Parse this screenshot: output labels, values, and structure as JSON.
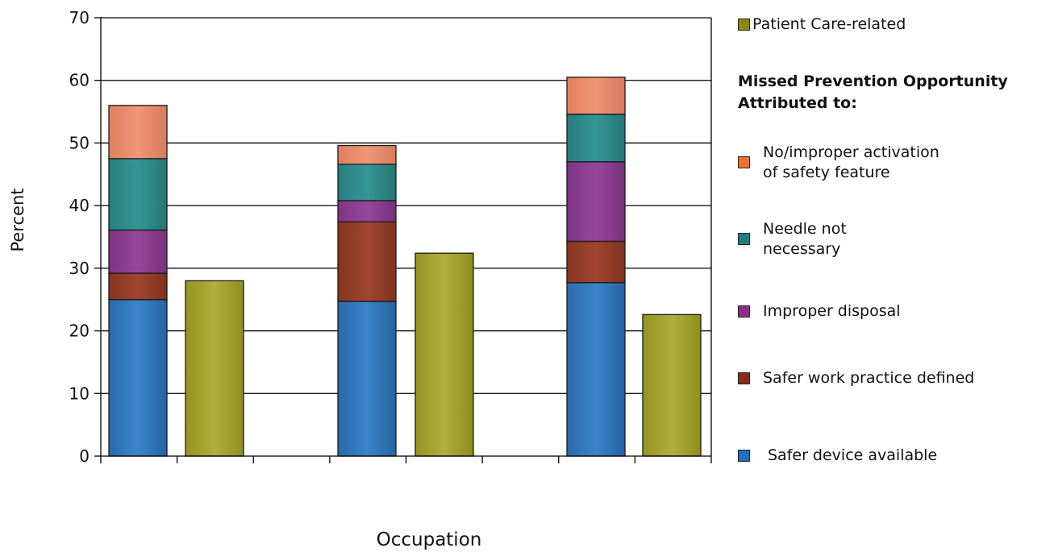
{
  "chart_data": {
    "type": "bar",
    "stacked": true,
    "title": "",
    "xlabel": "Occupation",
    "ylabel": "Percent",
    "ylim": [
      0,
      70
    ],
    "yticks": [
      0,
      10,
      20,
      30,
      40,
      50,
      60,
      70
    ],
    "categories": [
      "",
      "",
      ""
    ],
    "grid": true,
    "legend_position": "right",
    "legend_heading": "Missed Prevention Opportunity\nAttributed to:",
    "stacked_series": [
      {
        "name": "Safer device available",
        "color": "#2e75b6",
        "values": [
          25,
          24.7,
          27.7
        ]
      },
      {
        "name": "Safer work practice defined",
        "color": "#943d28",
        "values": [
          4.2,
          12.7,
          6.6
        ]
      },
      {
        "name": "Improper disposal",
        "color": "#8b3a8f",
        "values": [
          6.9,
          3.4,
          12.7
        ]
      },
      {
        "name": "Needle not\nnecessary",
        "color": "#2e8a8a",
        "values": [
          11.4,
          5.8,
          7.6
        ]
      },
      {
        "name": "No/improper activation\nof safety feature",
        "color": "#e8896a",
        "values": [
          8.5,
          3.0,
          5.9
        ]
      }
    ],
    "comparison_series": {
      "name": "Patient Care-related",
      "color": "#a3a227",
      "values": [
        28,
        32.4,
        22.6
      ]
    },
    "legend_swatch_colors": {
      "Patient Care-related": "#8a8a12",
      "No/improper activation\nof safety feature": "#f07030",
      "Needle not\nnecessary": "#1f7f7f",
      "Improper disposal": "#8b2f8f",
      "Safer work practice defined": "#8b2a1a",
      "Safer device available": "#1f6fc0"
    }
  }
}
